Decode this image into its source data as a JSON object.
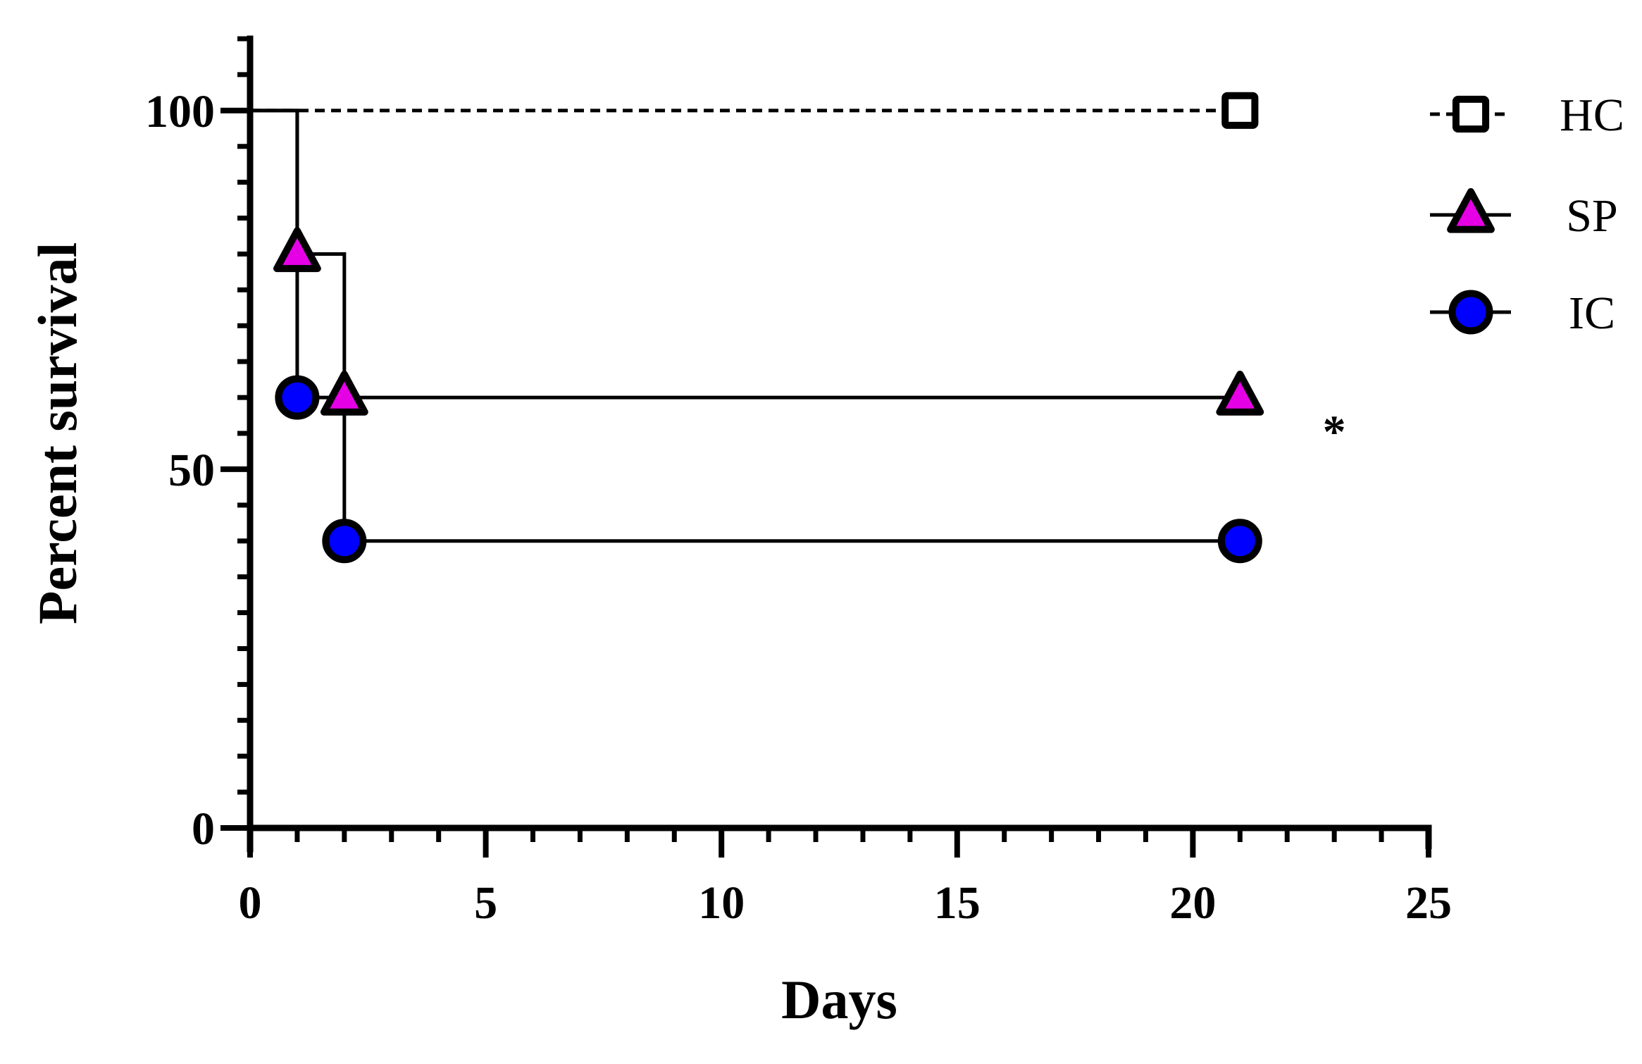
{
  "chart_data": {
    "type": "line",
    "subtype": "kaplan-meier step survival",
    "xlabel": "Days",
    "ylabel": "Percent survival",
    "xlim": [
      0,
      25
    ],
    "ylim": [
      0,
      110
    ],
    "x_ticks": [
      0,
      5,
      10,
      15,
      20,
      25
    ],
    "y_ticks": [
      0,
      50,
      100
    ],
    "grid": false,
    "legend_position": "top-right",
    "series": [
      {
        "name": "HC",
        "marker": "square",
        "line_style": "dashed",
        "color": "#ffffff",
        "x": [
          0,
          21
        ],
        "y": [
          100,
          100
        ],
        "marker_points": [
          [
            21,
            100
          ]
        ]
      },
      {
        "name": "SP",
        "marker": "triangle",
        "line_style": "solid",
        "color": "#e600e6",
        "x": [
          0,
          1,
          1,
          2,
          2,
          21
        ],
        "y": [
          100,
          100,
          80,
          80,
          60,
          60
        ],
        "marker_points": [
          [
            1,
            80
          ],
          [
            2,
            60
          ],
          [
            21,
            60
          ]
        ]
      },
      {
        "name": "IC",
        "marker": "circle",
        "line_style": "solid",
        "color": "#0000ff",
        "x": [
          0,
          1,
          1,
          2,
          2,
          21
        ],
        "y": [
          100,
          100,
          60,
          60,
          40,
          40
        ],
        "marker_points": [
          [
            1,
            60
          ],
          [
            2,
            40
          ],
          [
            21,
            40
          ]
        ]
      }
    ],
    "annotations": [
      {
        "text": "*",
        "x": 23,
        "y": 57
      }
    ]
  }
}
